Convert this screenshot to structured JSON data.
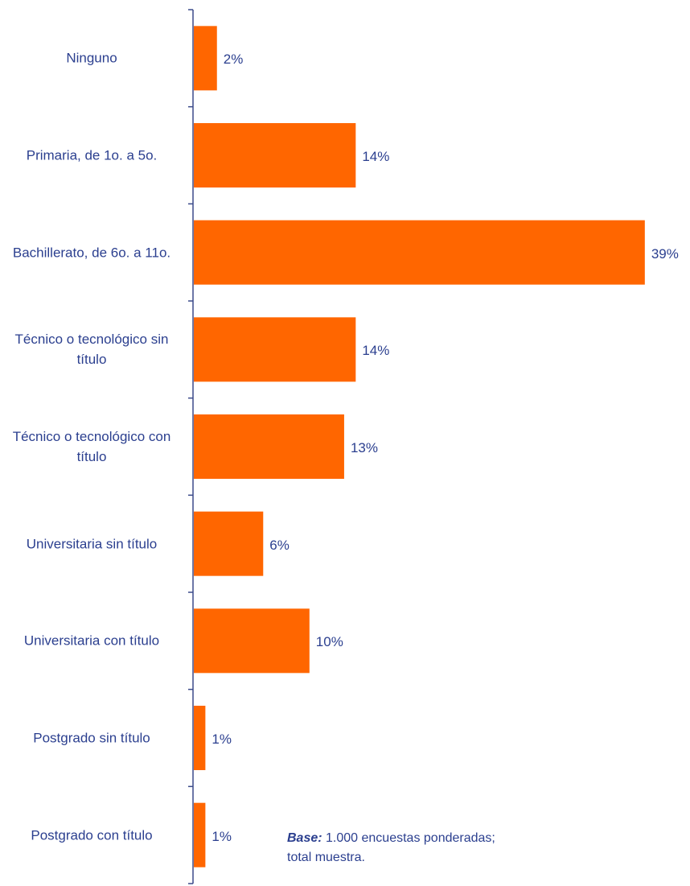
{
  "chart_data": {
    "type": "barh",
    "categories": [
      "Ninguno",
      "Primaria, de 1o. a 5o.",
      "Bachillerato, de 6o. a 11o.",
      "Técnico o tecnológico sin título",
      "Técnico o tecnológico con título",
      "Universitaria sin título",
      "Universitaria con título",
      "Postgrado sin título",
      "Postgrado con título"
    ],
    "values": [
      2,
      14,
      39,
      14,
      13,
      6,
      10,
      1,
      1
    ],
    "value_labels": [
      "2%",
      "14%",
      "39%",
      "14%",
      "13%",
      "6%",
      "10%",
      "1%",
      "1%"
    ],
    "color": "#ff6600",
    "note": {
      "label": "Base:",
      "text": " 1.000 encuestas ponderadas; total muestra."
    }
  }
}
